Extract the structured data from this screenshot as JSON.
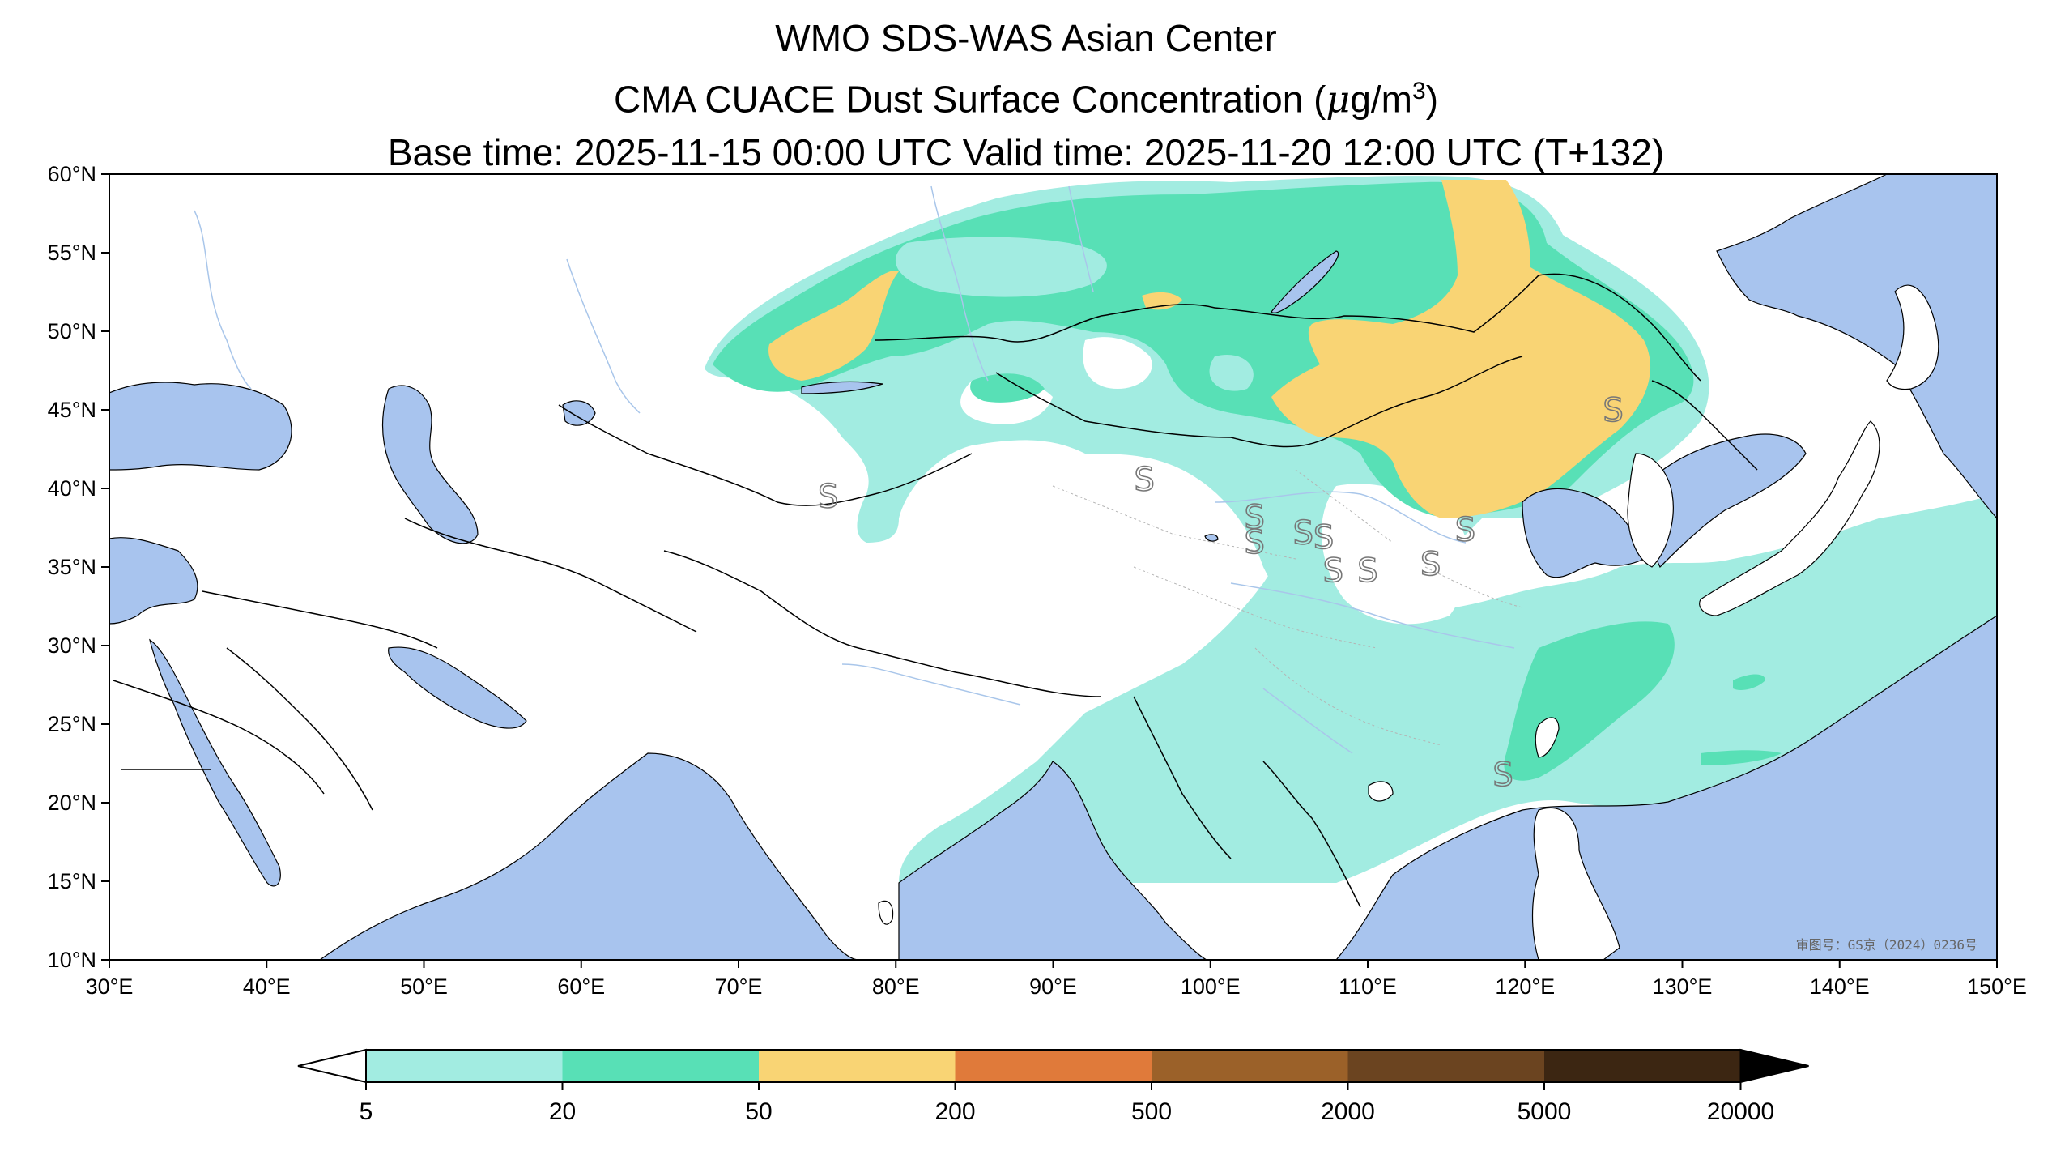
{
  "header": {
    "line1": "WMO SDS-WAS Asian Center",
    "line2_prefix": "CMA CUACE Dust Surface Concentration (",
    "line2_mu": "μ",
    "line2_unit": "g/m",
    "line2_exp": "3",
    "line2_suffix": ")",
    "line3": "Base time: 2025-11-15 00:00 UTC Valid time: 2025-11-20 12:00 UTC (T+132)"
  },
  "map": {
    "extent": {
      "lon_min": 30,
      "lon_max": 150,
      "lat_min": 10,
      "lat_max": 60
    },
    "lon_ticks": [
      {
        "value": 30,
        "label": "30°E"
      },
      {
        "value": 40,
        "label": "40°E"
      },
      {
        "value": 50,
        "label": "50°E"
      },
      {
        "value": 60,
        "label": "60°E"
      },
      {
        "value": 70,
        "label": "70°E"
      },
      {
        "value": 80,
        "label": "80°E"
      },
      {
        "value": 90,
        "label": "90°E"
      },
      {
        "value": 100,
        "label": "100°E"
      },
      {
        "value": 110,
        "label": "110°E"
      },
      {
        "value": 120,
        "label": "120°E"
      },
      {
        "value": 130,
        "label": "130°E"
      },
      {
        "value": 140,
        "label": "140°E"
      },
      {
        "value": 150,
        "label": "150°E"
      }
    ],
    "lat_ticks": [
      {
        "value": 60,
        "label": "60°N"
      },
      {
        "value": 55,
        "label": "55°N"
      },
      {
        "value": 50,
        "label": "50°N"
      },
      {
        "value": 45,
        "label": "45°N"
      },
      {
        "value": 40,
        "label": "40°N"
      },
      {
        "value": 35,
        "label": "35°N"
      },
      {
        "value": 30,
        "label": "30°N"
      },
      {
        "value": 25,
        "label": "25°N"
      },
      {
        "value": 20,
        "label": "20°N"
      },
      {
        "value": 15,
        "label": "15°N"
      },
      {
        "value": 10,
        "label": "10°N"
      }
    ],
    "approval_text": "审图号：GS京（2024）0236号",
    "dust_symbol": "S",
    "dust_symbol_locations": [
      {
        "lon": 75.7,
        "lat": 39.5
      },
      {
        "lon": 95.8,
        "lat": 40.6
      },
      {
        "lon": 102.8,
        "lat": 38.2
      },
      {
        "lon": 102.8,
        "lat": 36.6
      },
      {
        "lon": 105.9,
        "lat": 37.2
      },
      {
        "lon": 107.2,
        "lat": 36.9
      },
      {
        "lon": 107.8,
        "lat": 34.8
      },
      {
        "lon": 110.0,
        "lat": 34.8
      },
      {
        "lon": 114.0,
        "lat": 35.2
      },
      {
        "lon": 116.2,
        "lat": 37.4
      },
      {
        "lon": 125.6,
        "lat": 45.0
      },
      {
        "lon": 118.6,
        "lat": 21.8
      }
    ],
    "colors": {
      "land": "#ffffff",
      "water": "#a8c4ee",
      "river": "#a9c6ea",
      "border": "#000000",
      "province": "#b4b4b4"
    }
  },
  "colorbar": {
    "bins": [
      {
        "color": "#a2ece1"
      },
      {
        "color": "#58e0b6"
      },
      {
        "color": "#f9d474"
      },
      {
        "color": "#e07a3a"
      },
      {
        "color": "#9b6129"
      },
      {
        "color": "#6b4420"
      },
      {
        "color": "#3c2612"
      }
    ],
    "ticks": [
      "5",
      "20",
      "50",
      "200",
      "500",
      "2000",
      "5000",
      "20000"
    ],
    "under_color": "#ffffff",
    "over_color": "#000000"
  }
}
